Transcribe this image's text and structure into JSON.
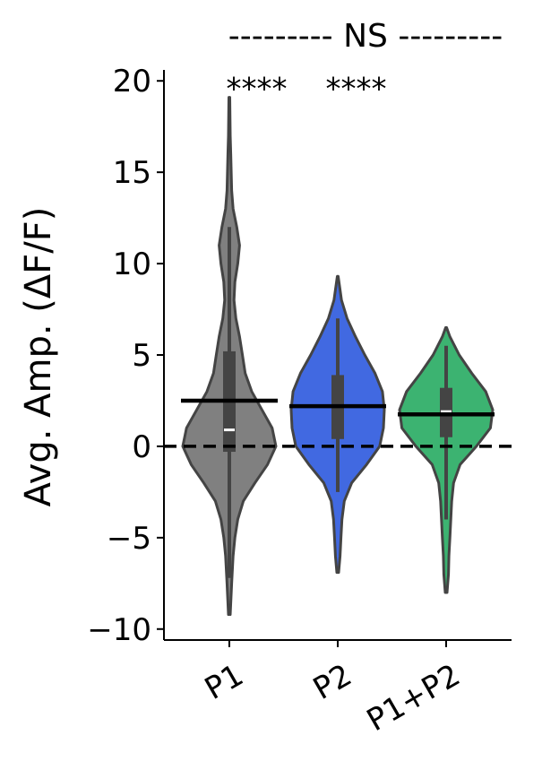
{
  "chart_data": {
    "type": "violin",
    "ylabel": "Avg. Amp. (ΔF/F)",
    "ylim": [
      -10.6,
      20.6
    ],
    "yticks": [
      20,
      15,
      10,
      5,
      0,
      -5,
      -10
    ],
    "ytick_labels": [
      "20",
      "15",
      "10",
      "5",
      "0",
      "−5",
      "−10"
    ],
    "reference_line": {
      "y": 0,
      "style": "dashed",
      "color": "#000000"
    },
    "categories": [
      {
        "name": "P1",
        "color": "#808080",
        "min": -9.2,
        "max": 19.1,
        "q1": -0.3,
        "median": 0.9,
        "q3": 5.2,
        "whisker_low": -7.2,
        "whisker_high": 12.0,
        "mean": 2.5,
        "density": [
          [
            -9.2,
            0.02
          ],
          [
            -7.5,
            0.05
          ],
          [
            -6,
            0.08
          ],
          [
            -5,
            0.12
          ],
          [
            -4,
            0.18
          ],
          [
            -3,
            0.3
          ],
          [
            -2,
            0.55
          ],
          [
            -1,
            0.82
          ],
          [
            0,
            1.0
          ],
          [
            1,
            0.92
          ],
          [
            2,
            0.7
          ],
          [
            3,
            0.48
          ],
          [
            4,
            0.34
          ],
          [
            5,
            0.28
          ],
          [
            6,
            0.22
          ],
          [
            7,
            0.14
          ],
          [
            8,
            0.1
          ],
          [
            9,
            0.12
          ],
          [
            10,
            0.18
          ],
          [
            11,
            0.22
          ],
          [
            12,
            0.16
          ],
          [
            13,
            0.08
          ],
          [
            14,
            0.05
          ],
          [
            15,
            0.04
          ],
          [
            16,
            0.03
          ],
          [
            17,
            0.02
          ],
          [
            19.1,
            0.01
          ]
        ]
      },
      {
        "name": "P2",
        "color": "#4169e1",
        "min": -6.9,
        "max": 9.3,
        "q1": 0.4,
        "median": 2.2,
        "q3": 3.9,
        "whisker_low": -2.5,
        "whisker_high": 7.0,
        "mean": 2.2,
        "density": [
          [
            -6.9,
            0.02
          ],
          [
            -6,
            0.05
          ],
          [
            -5,
            0.07
          ],
          [
            -4,
            0.09
          ],
          [
            -3,
            0.14
          ],
          [
            -2,
            0.3
          ],
          [
            -1,
            0.62
          ],
          [
            0,
            0.9
          ],
          [
            1,
            0.98
          ],
          [
            2,
            1.0
          ],
          [
            3,
            0.96
          ],
          [
            4,
            0.8
          ],
          [
            5,
            0.58
          ],
          [
            6,
            0.38
          ],
          [
            7,
            0.2
          ],
          [
            8,
            0.08
          ],
          [
            9.3,
            0.01
          ]
        ]
      },
      {
        "name": "P1+P2",
        "color": "#3cb371",
        "min": -8.0,
        "max": 6.5,
        "q1": 0.5,
        "median": 1.9,
        "q3": 3.2,
        "whisker_low": -4.0,
        "whisker_high": 5.5,
        "mean": 1.75,
        "density": [
          [
            -8,
            0.02
          ],
          [
            -7,
            0.05
          ],
          [
            -6,
            0.06
          ],
          [
            -5,
            0.08
          ],
          [
            -4,
            0.1
          ],
          [
            -3,
            0.12
          ],
          [
            -2,
            0.16
          ],
          [
            -1,
            0.3
          ],
          [
            0,
            0.65
          ],
          [
            1,
            0.95
          ],
          [
            2,
            1.0
          ],
          [
            3,
            0.85
          ],
          [
            4,
            0.55
          ],
          [
            5,
            0.28
          ],
          [
            6,
            0.08
          ],
          [
            6.5,
            0.01
          ]
        ]
      }
    ],
    "annotations": [
      {
        "text": "****",
        "between": [
          "P1",
          "P2"
        ],
        "y": 19.9
      },
      {
        "text": "****",
        "between": [
          "P2",
          "P1+P2"
        ],
        "y": 19.9
      }
    ],
    "top_annotation": {
      "text": "NS",
      "dashes": "---------"
    }
  }
}
